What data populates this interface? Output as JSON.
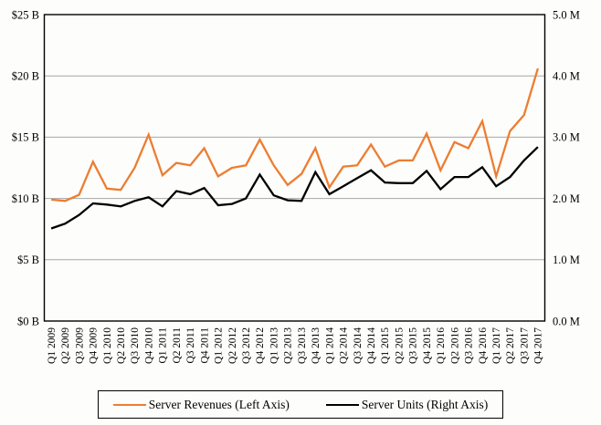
{
  "chart_data": {
    "type": "line",
    "title": "",
    "categories": [
      "Q1 2009",
      "Q2 2009",
      "Q3 2009",
      "Q4 2009",
      "Q1 2010",
      "Q2 2010",
      "Q3 2010",
      "Q4 2010",
      "Q1 2011",
      "Q2 2011",
      "Q3 2011",
      "Q4 2011",
      "Q1 2012",
      "Q2 2012",
      "Q3 2012",
      "Q4 2012",
      "Q1 2013",
      "Q2 2013",
      "Q3 2013",
      "Q4 2013",
      "Q1 2014",
      "Q2 2014",
      "Q3 2014",
      "Q4 2014",
      "Q1 2015",
      "Q2 2015",
      "Q3 2015",
      "Q4 2015",
      "Q1 2016",
      "Q2 2016",
      "Q3 2016",
      "Q4 2016",
      "Q1 2017",
      "Q2 2017",
      "Q3 2017",
      "Q4 2017"
    ],
    "series": [
      {
        "name": "Server Revenues (Left Axis)",
        "axis": "left",
        "unit": "$ billions",
        "color": "#ED7D31",
        "values": [
          9.9,
          9.8,
          10.3,
          13.0,
          10.8,
          10.7,
          12.5,
          15.2,
          11.9,
          12.9,
          12.7,
          14.1,
          11.8,
          12.5,
          12.7,
          14.8,
          12.7,
          11.1,
          12.0,
          14.1,
          10.9,
          12.6,
          12.7,
          14.4,
          12.6,
          13.1,
          13.1,
          15.3,
          12.3,
          14.6,
          14.1,
          16.3,
          11.8,
          15.5,
          16.8,
          20.6
        ]
      },
      {
        "name": "Server Units (Right Axis)",
        "axis": "right",
        "unit": "millions of units",
        "color": "#000000",
        "values": [
          1.51,
          1.59,
          1.73,
          1.92,
          1.9,
          1.87,
          1.96,
          2.02,
          1.87,
          2.12,
          2.07,
          2.17,
          1.89,
          1.91,
          2.0,
          2.39,
          2.05,
          1.97,
          1.96,
          2.43,
          2.07,
          2.2,
          2.33,
          2.46,
          2.26,
          2.25,
          2.25,
          2.45,
          2.15,
          2.35,
          2.35,
          2.51,
          2.2,
          2.35,
          2.62,
          2.84
        ]
      }
    ],
    "left_axis": {
      "min": 0,
      "max": 25,
      "tick_labels_bottom_to_top": [
        "$0 B",
        "$5 B",
        "$10 B",
        "$15 B",
        "$20 B",
        "$25 B"
      ]
    },
    "right_axis": {
      "min": 0,
      "max": 5,
      "tick_labels_bottom_to_top": [
        "0.0 M",
        "1.0 M",
        "2.0 M",
        "3.0 M",
        "4.0 M",
        "5.0 M"
      ]
    },
    "grid": true,
    "x_tick_label_rotation_deg": 90,
    "legend_position": "bottom"
  },
  "legend": {
    "items": [
      {
        "label": "Server Revenues (Left Axis)",
        "color": "#ED7D31"
      },
      {
        "label": "Server Units (Right Axis)",
        "color": "#000000"
      }
    ]
  },
  "colors": {
    "revenue_line": "#ED7D31",
    "units_line": "#000000",
    "gridline": "#A6A6A6",
    "plot_border": "#000000",
    "background": "#fdfdfb"
  }
}
